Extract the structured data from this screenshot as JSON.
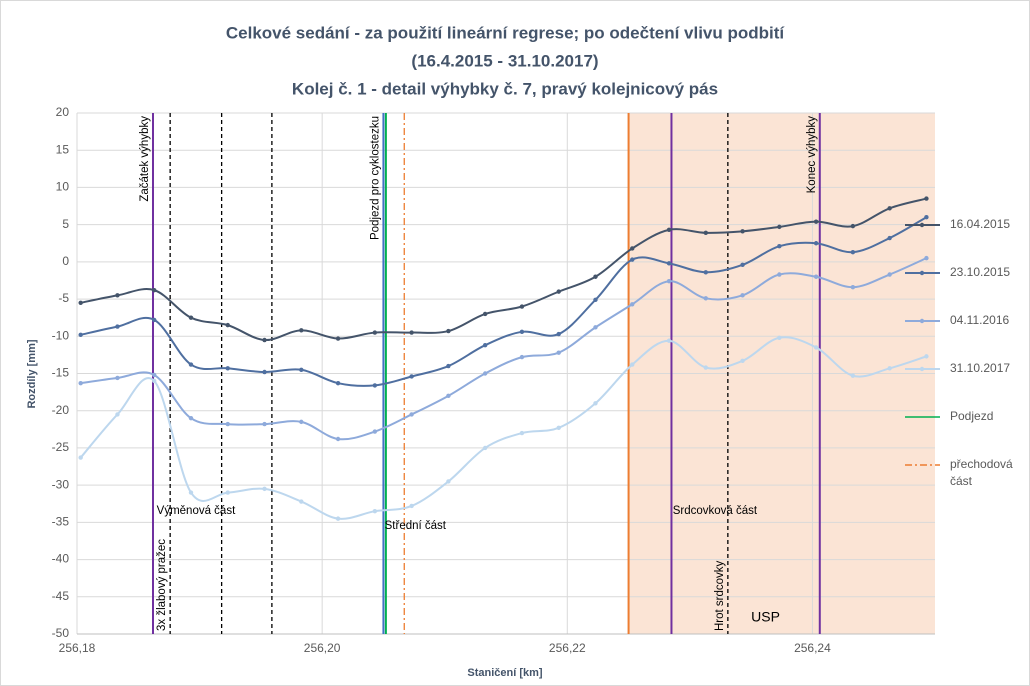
{
  "chart_data": {
    "type": "line",
    "title": [
      "Celkové sedání - za použití lineární regrese; po odečtení vlivu podbití",
      "(16.4.2015 - 31.10.2017)",
      "Kolej č. 1 - detail výhybky č. 7, pravý kolejnicový pás"
    ],
    "x_label": "Staničení [km]",
    "y_label": "Rozdíly [mm]",
    "xlim": [
      256.18,
      256.25
    ],
    "ylim": [
      -50,
      20
    ],
    "xticks": [
      {
        "value": 256.18,
        "label": "256,18"
      },
      {
        "value": 256.2,
        "label": "256,20"
      },
      {
        "value": 256.22,
        "label": "256,22"
      },
      {
        "value": 256.24,
        "label": "256,24"
      }
    ],
    "yticks": [
      20,
      15,
      10,
      5,
      0,
      -5,
      -10,
      -15,
      -20,
      -25,
      -30,
      -35,
      -40,
      -45,
      -50
    ],
    "grid": true,
    "smooth": true,
    "x": [
      256.1803,
      256.1833,
      256.1863,
      256.1893,
      256.1923,
      256.1953,
      256.1983,
      256.2013,
      256.2043,
      256.2073,
      256.2103,
      256.2133,
      256.2163,
      256.2193,
      256.2223,
      256.2253,
      256.2283,
      256.2313,
      256.2343,
      256.2373,
      256.2403,
      256.2433,
      256.2463,
      256.2493
    ],
    "series": [
      {
        "name": "16.04.2015",
        "color": "#44546a",
        "values": [
          -5.5,
          -4.5,
          -3.8,
          -7.5,
          -8.5,
          -10.5,
          -9.2,
          -10.3,
          -9.5,
          -9.5,
          -9.3,
          -7.0,
          -6.0,
          -4.0,
          -2.0,
          1.8,
          4.3,
          3.9,
          4.1,
          4.7,
          5.4,
          4.8,
          7.2,
          8.5
        ]
      },
      {
        "name": "23.10.2015",
        "color": "#4f6fa0",
        "values": [
          -9.8,
          -8.7,
          -7.8,
          -13.8,
          -14.3,
          -14.8,
          -14.5,
          -16.3,
          -16.6,
          -15.4,
          -14.0,
          -11.2,
          -9.4,
          -9.7,
          -5.1,
          0.3,
          -0.2,
          -1.4,
          -0.4,
          2.1,
          2.5,
          1.3,
          3.2,
          6.0
        ]
      },
      {
        "name": "04.11.2016",
        "color": "#8eaadb",
        "values": [
          -16.3,
          -15.6,
          -15.2,
          -21.0,
          -21.8,
          -21.8,
          -21.5,
          -23.8,
          -22.8,
          -20.5,
          -18.0,
          -15.0,
          -12.8,
          -12.2,
          -8.8,
          -5.7,
          -2.6,
          -4.9,
          -4.5,
          -1.7,
          -2.0,
          -3.4,
          -1.7,
          0.5
        ]
      },
      {
        "name": "31.10.2017",
        "color": "#bdd7ee",
        "values": [
          -26.3,
          -20.5,
          -16.0,
          -31.0,
          -31.0,
          -30.5,
          -32.2,
          -34.5,
          -33.5,
          -32.8,
          -29.5,
          -25.0,
          -23.0,
          -22.3,
          -19.0,
          -13.8,
          -10.6,
          -14.2,
          -13.3,
          -10.2,
          -11.5,
          -15.3,
          -14.3,
          -12.7
        ]
      }
    ],
    "shaded_region": {
      "x": [
        256.225,
        256.25
      ],
      "color": "#fbe4d5",
      "label": "USP"
    },
    "vlines": [
      {
        "x": 256.1862,
        "color": "#7030a0",
        "style": "solid",
        "label": "Začátek výhybky",
        "label_pos": "top"
      },
      {
        "x": 256.1876,
        "color": "#000000",
        "style": "dashed",
        "label": "3x žlabový pražec",
        "label_pos": "bottom"
      },
      {
        "x": 256.1918,
        "color": "#000000",
        "style": "dashed"
      },
      {
        "x": 256.1959,
        "color": "#000000",
        "style": "dashed"
      },
      {
        "x": 256.205,
        "color": "#4472c4",
        "style": "solid",
        "label": "Podjezd pro cyklostezku",
        "label_pos": "top"
      },
      {
        "x": 256.2052,
        "color": "#00b050",
        "style": "solid",
        "name": "Podjezd"
      },
      {
        "x": 256.2067,
        "color": "#ed7d31",
        "style": "dashdot",
        "name": "přechodová část"
      },
      {
        "x": 256.225,
        "color": "#ed7d31",
        "style": "solid"
      },
      {
        "x": 256.2285,
        "color": "#7030a0",
        "style": "solid"
      },
      {
        "x": 256.2331,
        "color": "#000000",
        "style": "dashed",
        "label": "Hrot srdcovky",
        "label_pos": "bottom"
      },
      {
        "x": 256.2406,
        "color": "#7030a0",
        "style": "solid",
        "label": "Konec výhybky",
        "label_pos": "top"
      }
    ],
    "section_labels": [
      {
        "text": "Výměnová část",
        "x": 256.1865,
        "y": -33.5
      },
      {
        "text": "Střední část",
        "x": 256.2051,
        "y": -35.5
      },
      {
        "text": "Srdcovková část",
        "x": 256.2286,
        "y": -33.5
      }
    ]
  }
}
